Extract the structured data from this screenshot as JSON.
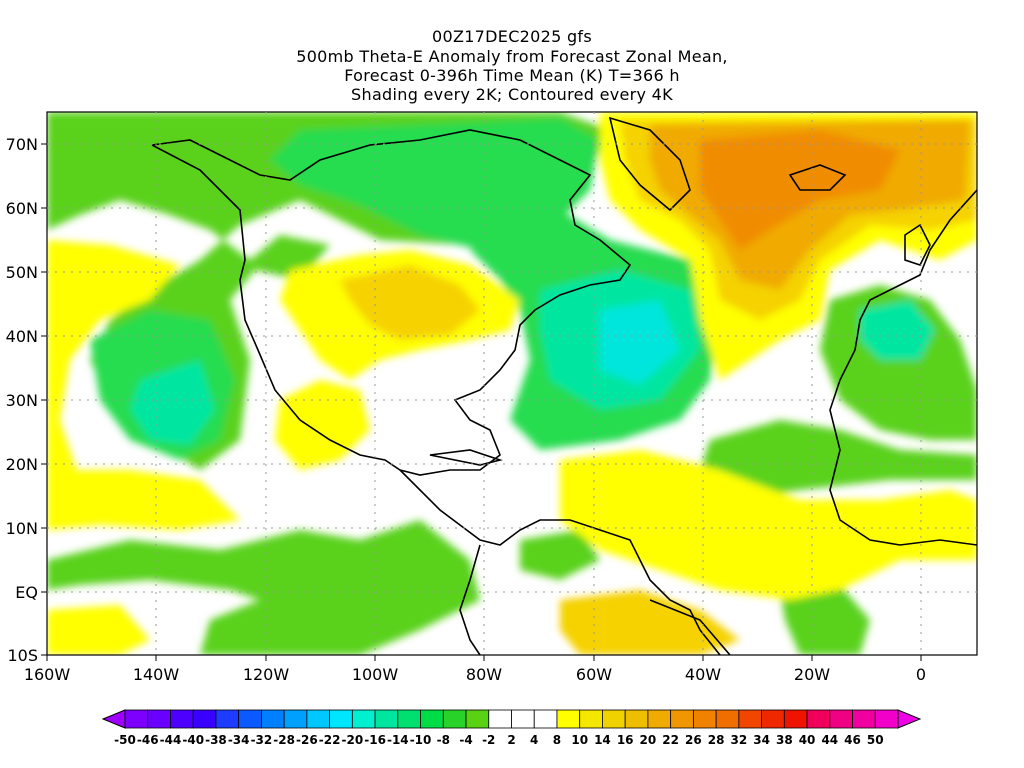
{
  "title": {
    "line1": "00Z17DEC2025 gfs",
    "line2": "500mb Theta-E Anomaly from Forecast Zonal Mean,",
    "line3": "Forecast 0-396h Time Mean (K) T=366 h",
    "line4": "Shading every 2K; Contoured every 4K"
  },
  "axes": {
    "lon_labels": [
      "160W",
      "140W",
      "120W",
      "100W",
      "80W",
      "60W",
      "40W",
      "20W",
      "0"
    ],
    "lat_labels": [
      "70N",
      "60N",
      "50N",
      "40N",
      "30N",
      "20N",
      "10N",
      "EQ",
      "10S"
    ]
  },
  "colorbar": {
    "labels": [
      "-50",
      "-46",
      "-44",
      "-40",
      "-38",
      "-34",
      "-32",
      "-28",
      "-26",
      "-22",
      "-20",
      "-16",
      "-14",
      "-10",
      "-8",
      "-4",
      "-2",
      "2",
      "4",
      "8",
      "10",
      "14",
      "16",
      "20",
      "22",
      "26",
      "28",
      "32",
      "34",
      "38",
      "40",
      "44",
      "46",
      "50"
    ],
    "colors": [
      "#a000ff",
      "#7d00ff",
      "#6a00ff",
      "#4e00ff",
      "#3a00ff",
      "#1e3cff",
      "#0a5aff",
      "#0080ff",
      "#00a0ff",
      "#00c8ff",
      "#00e6ff",
      "#00f0d0",
      "#00e6a0",
      "#00e070",
      "#00dc46",
      "#28d228",
      "#5ad214",
      "#ffffff",
      "#ffffff",
      "#ffffff",
      "#ffff00",
      "#f5e600",
      "#f0d200",
      "#f0be00",
      "#f0aa00",
      "#f09600",
      "#f08200",
      "#f06e00",
      "#f04600",
      "#f02800",
      "#f01400",
      "#f0005a",
      "#f00082",
      "#f000a0",
      "#f000c8",
      "#f000e6"
    ]
  },
  "shading_colors": {
    "light_green": "#5ad21e",
    "green": "#28dc50",
    "teal": "#00e6a0",
    "cyan": "#00e6dc",
    "yellow": "#ffff00",
    "gold": "#f5d200",
    "orange": "#f0aa00",
    "dark_orange": "#f08c00"
  }
}
